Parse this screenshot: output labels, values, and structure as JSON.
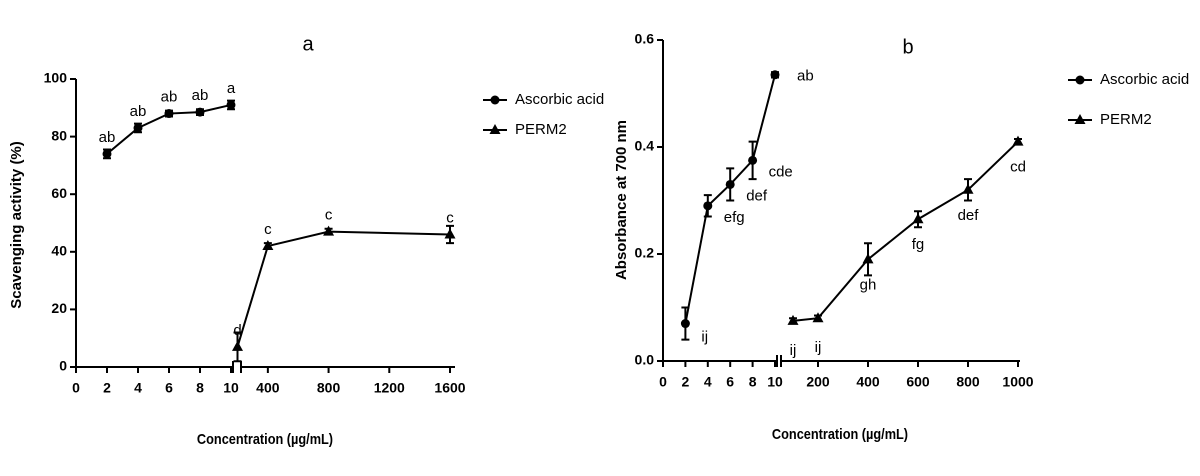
{
  "chart_data": [
    {
      "type": "line",
      "title": "a",
      "y_label": "Scavenging activity (%)",
      "x_label": "Concentration (µg/mL)",
      "ylim": [
        0,
        100
      ],
      "yticks": [
        0,
        20,
        40,
        60,
        80,
        100
      ],
      "x_segments": [
        {
          "xlim": [
            0,
            10
          ],
          "xticks": [
            0,
            2,
            4,
            6,
            8,
            10
          ]
        },
        {
          "xlim": [
            200,
            1600
          ],
          "xticks": [
            400,
            800,
            1200,
            1600
          ]
        }
      ],
      "legend": "right",
      "series": [
        {
          "name": "Ascorbic acid",
          "color": "#000000",
          "marker": "circle",
          "segment": 0,
          "x": [
            2,
            4,
            6,
            8,
            10
          ],
          "values": [
            74,
            83,
            88,
            88.5,
            91
          ],
          "errors": [
            1.5,
            1.5,
            1,
            1,
            1.5
          ],
          "point_labels": [
            "ab",
            "ab",
            "ab",
            "ab",
            "a"
          ]
        },
        {
          "name": "PERM2",
          "color": "#000000",
          "marker": "triangle",
          "segment": 1,
          "x": [
            200,
            400,
            800,
            1600
          ],
          "values": [
            7,
            42,
            47,
            46
          ],
          "errors": [
            5,
            1,
            1,
            3
          ],
          "point_labels": [
            "d",
            "c",
            "c",
            "c"
          ]
        }
      ]
    },
    {
      "type": "line",
      "title": "b",
      "y_label": "Absorbance at 700 nm",
      "x_label": "Concentration (µg/mL)",
      "ylim": [
        0,
        0.6
      ],
      "yticks": [
        {
          "value": 0,
          "label": "0.0"
        },
        0.2,
        0.4,
        0.6
      ],
      "x_segments": [
        {
          "xlim": [
            0,
            10
          ],
          "xticks": [
            0,
            2,
            4,
            6,
            8,
            10
          ]
        },
        {
          "xlim": [
            50,
            1000
          ],
          "xticks": [
            200,
            400,
            600,
            800,
            1000
          ]
        }
      ],
      "legend": "right",
      "series": [
        {
          "name": "Ascorbic acid",
          "color": "#000000",
          "marker": "circle",
          "segment": 0,
          "x": [
            2,
            4,
            6,
            8,
            10
          ],
          "values": [
            0.07,
            0.29,
            0.33,
            0.375,
            0.535
          ],
          "errors": [
            0.03,
            0.02,
            0.03,
            0.035,
            0.005
          ],
          "point_labels": [
            "ij",
            "efg",
            "def",
            "cde",
            "ab"
          ]
        },
        {
          "name": "PERM2",
          "color": "#000000",
          "marker": "triangle",
          "segment": 1,
          "x": [
            100,
            200,
            400,
            600,
            800,
            1000
          ],
          "values": [
            0.075,
            0.08,
            0.19,
            0.265,
            0.32,
            0.41
          ],
          "errors": [
            0.005,
            0.005,
            0.03,
            0.015,
            0.02,
            0.005
          ],
          "point_labels": [
            "ij",
            "ij",
            "gh",
            "fg",
            "def",
            "cd"
          ]
        }
      ]
    }
  ]
}
